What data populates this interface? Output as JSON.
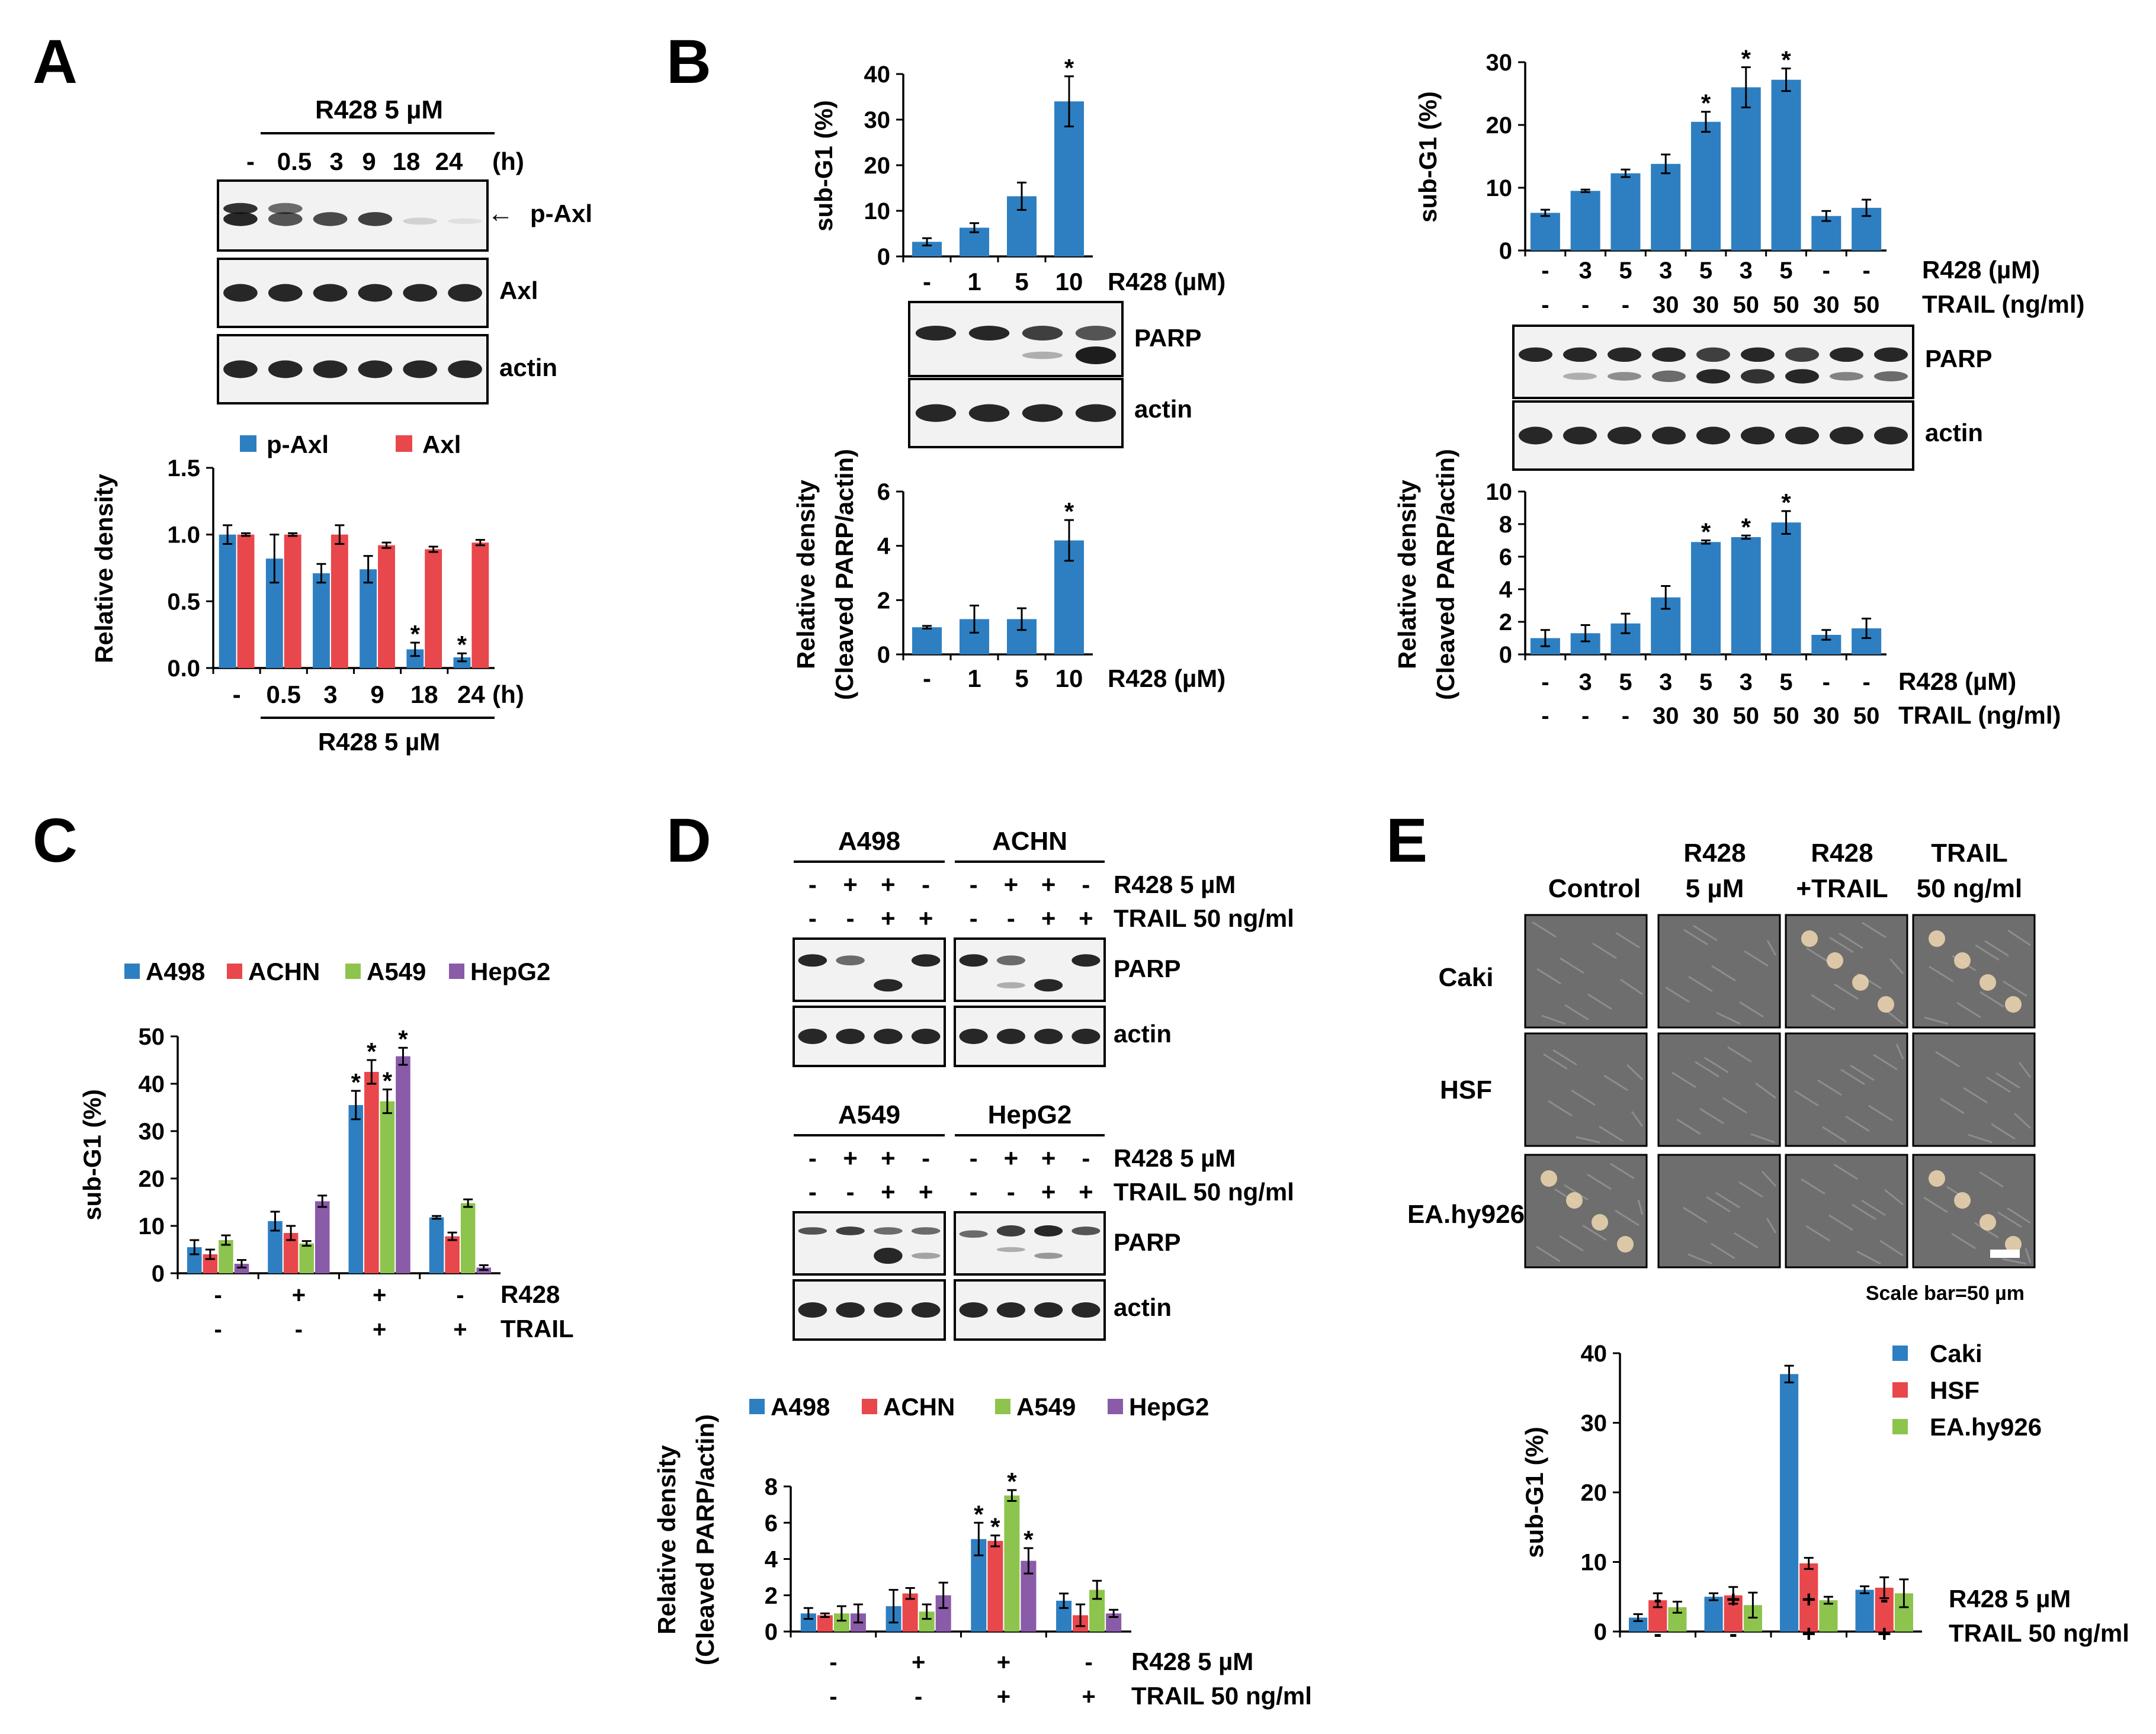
{
  "panels": {
    "A": "A",
    "B": "B",
    "C": "C",
    "D": "D",
    "E": "E"
  },
  "colors": {
    "blue": "#2e7fc1",
    "red": "#e8474b",
    "green": "#8dc44d",
    "purple": "#8a5ba8"
  },
  "panelA": {
    "header": "R428 5 µM",
    "lanes": [
      "-",
      "0.5",
      "3",
      "9",
      "18",
      "24"
    ],
    "unit": "(h)",
    "blots": [
      "p-Axl",
      "Axl",
      "actin"
    ],
    "arrow": "←"
  },
  "panelB": {
    "left_lanes": [
      "-",
      "1",
      "5",
      "10"
    ],
    "left_blots": [
      "PARP",
      "actin"
    ],
    "right_r428": [
      "-",
      "3",
      "5",
      "3",
      "5",
      "3",
      "5",
      "-",
      "-"
    ],
    "right_trail": [
      "-",
      "-",
      "-",
      "30",
      "30",
      "50",
      "50",
      "30",
      "50"
    ],
    "right_blots": [
      "PARP",
      "actin"
    ]
  },
  "panelD": {
    "groups_top": [
      "A498",
      "ACHN"
    ],
    "groups_bottom": [
      "A549",
      "HepG2"
    ],
    "r428_row": [
      "-",
      "+",
      "+",
      "-"
    ],
    "trail_row": [
      "-",
      "-",
      "+",
      "+"
    ],
    "r428_label": "R428 5 µM",
    "trail_label": "TRAIL 50 ng/ml",
    "blots": [
      "PARP",
      "actin"
    ]
  },
  "panelE": {
    "columns": [
      "Control",
      "R428\n5 µM",
      "R428\n+TRAIL",
      "TRAIL\n50 ng/ml"
    ],
    "rows": [
      "Caki",
      "HSF",
      "EA.hy926"
    ],
    "scale_bar": "Scale bar=50 µm"
  },
  "chart_data": [
    {
      "id": "A-bar",
      "type": "bar",
      "ylabel": "Relative density",
      "ylim": [
        0,
        1.5
      ],
      "yticks": [
        "0.0",
        "0.5",
        "1.0",
        "1.5"
      ],
      "categories": [
        "-",
        "0.5",
        "3",
        "9",
        "18",
        "24"
      ],
      "unit": "(h)",
      "under_label": "R428 5 µM",
      "series": [
        {
          "name": "p-Axl",
          "color": "#2e7fc1",
          "values": [
            1.0,
            0.82,
            0.71,
            0.74,
            0.14,
            0.08
          ],
          "err": [
            0.07,
            0.18,
            0.07,
            0.1,
            0.05,
            0.03
          ]
        },
        {
          "name": "Axl",
          "color": "#e8474b",
          "values": [
            1.0,
            1.0,
            1.0,
            0.92,
            0.89,
            0.94
          ],
          "err": [
            0.01,
            0.01,
            0.07,
            0.02,
            0.02,
            0.02
          ]
        }
      ],
      "stars": [
        [
          "p-Axl",
          4
        ],
        [
          "p-Axl",
          5
        ]
      ]
    },
    {
      "id": "B1-subG1",
      "type": "bar",
      "ylabel": "sub-G1 (%)",
      "ylim": [
        0,
        40
      ],
      "yticks": [
        "0",
        "10",
        "20",
        "30",
        "40"
      ],
      "categories": [
        "-",
        "1",
        "5",
        "10"
      ],
      "xlabel": "R428 (µM)",
      "series": [
        {
          "color": "#2e7fc1",
          "values": [
            3.2,
            6.3,
            13.2,
            34.0
          ],
          "err": [
            0.8,
            1.0,
            3.0,
            5.5
          ]
        }
      ],
      "stars": [
        [
          0,
          3
        ]
      ]
    },
    {
      "id": "B1-density",
      "type": "bar",
      "ylabel": [
        "Relative density",
        "(Cleaved  PARP/actin)"
      ],
      "ylim": [
        0,
        6
      ],
      "yticks": [
        "0",
        "2",
        "4",
        "6"
      ],
      "categories": [
        "-",
        "1",
        "5",
        "10"
      ],
      "xlabel": "R428 (µM)",
      "series": [
        {
          "color": "#2e7fc1",
          "values": [
            1.0,
            1.3,
            1.3,
            4.2
          ],
          "err": [
            0.05,
            0.5,
            0.4,
            0.75
          ]
        }
      ],
      "stars": [
        [
          0,
          3
        ]
      ]
    },
    {
      "id": "B2-subG1",
      "type": "bar",
      "ylabel": "sub-G1 (%)",
      "ylim": [
        0,
        30
      ],
      "yticks": [
        "0",
        "10",
        "20",
        "30"
      ],
      "categories": [
        "-",
        "3",
        "5",
        "3",
        "5",
        "3",
        "5",
        "-",
        "-"
      ],
      "rows": [
        {
          "label": "R428 (µM)",
          "values": [
            "-",
            "3",
            "5",
            "3",
            "5",
            "3",
            "5",
            "-",
            "-"
          ]
        },
        {
          "label": "TRAIL (ng/ml)",
          "values": [
            "-",
            "-",
            "-",
            "30",
            "30",
            "50",
            "50",
            "30",
            "50"
          ]
        }
      ],
      "series": [
        {
          "color": "#2e7fc1",
          "values": [
            6.0,
            9.5,
            12.3,
            13.8,
            20.5,
            26.0,
            27.2,
            5.5,
            6.8
          ],
          "err": [
            0.5,
            0.2,
            0.6,
            1.5,
            1.6,
            3.2,
            1.8,
            0.8,
            1.3
          ]
        }
      ],
      "stars": [
        [
          0,
          4
        ],
        [
          0,
          5
        ],
        [
          0,
          6
        ]
      ]
    },
    {
      "id": "B2-density",
      "type": "bar",
      "ylabel": [
        "Relative density",
        "(Cleaved  PARP/actin)"
      ],
      "ylim": [
        0,
        10
      ],
      "yticks": [
        "0",
        "2",
        "4",
        "6",
        "8",
        "10"
      ],
      "categories": [
        "-",
        "3",
        "5",
        "3",
        "5",
        "3",
        "5",
        "-",
        "-"
      ],
      "rows": [
        {
          "label": "R428 (µM)",
          "values": [
            "-",
            "3",
            "5",
            "3",
            "5",
            "3",
            "5",
            "-",
            "-"
          ]
        },
        {
          "label": "TRAIL (ng/ml)",
          "values": [
            "-",
            "-",
            "-",
            "30",
            "30",
            "50",
            "50",
            "30",
            "50"
          ]
        }
      ],
      "series": [
        {
          "color": "#2e7fc1",
          "values": [
            1.0,
            1.3,
            1.9,
            3.5,
            6.9,
            7.2,
            8.1,
            1.2,
            1.6
          ],
          "err": [
            0.5,
            0.5,
            0.6,
            0.7,
            0.1,
            0.1,
            0.7,
            0.3,
            0.6
          ]
        }
      ],
      "stars": [
        [
          0,
          4
        ],
        [
          0,
          5
        ],
        [
          0,
          6
        ]
      ]
    },
    {
      "id": "C",
      "type": "bar",
      "ylabel": "sub-G1 (%)",
      "ylim": [
        0,
        50
      ],
      "yticks": [
        "0",
        "10",
        "20",
        "30",
        "40",
        "50"
      ],
      "categories": [
        "-",
        "+",
        "+",
        "-"
      ],
      "rows": [
        {
          "label": "R428",
          "values": [
            "-",
            "+",
            "+",
            "-"
          ]
        },
        {
          "label": "TRAIL",
          "values": [
            "-",
            "-",
            "+",
            "+"
          ]
        }
      ],
      "series": [
        {
          "name": "A498",
          "color": "#2e7fc1",
          "values": [
            5.5,
            11.0,
            35.5,
            11.8
          ],
          "err": [
            1.5,
            2.0,
            3.0,
            0.3
          ]
        },
        {
          "name": "ACHN",
          "color": "#e8474b",
          "values": [
            4.0,
            8.5,
            42.5,
            7.8
          ],
          "err": [
            1.0,
            1.5,
            2.5,
            0.8
          ]
        },
        {
          "name": "A549",
          "color": "#8dc44d",
          "values": [
            7.0,
            6.3,
            36.3,
            14.8
          ],
          "err": [
            1.0,
            0.5,
            2.5,
            0.8
          ]
        },
        {
          "name": "HepG2",
          "color": "#8a5ba8",
          "values": [
            2.0,
            15.2,
            45.8,
            1.2
          ],
          "err": [
            0.8,
            1.2,
            1.8,
            0.5
          ]
        }
      ],
      "stars": [
        [
          0,
          2
        ],
        [
          1,
          2
        ],
        [
          2,
          2
        ],
        [
          3,
          2
        ]
      ]
    },
    {
      "id": "D-density",
      "type": "bar",
      "ylabel": [
        "Relative density",
        "(Cleaved  PARP/actin)"
      ],
      "ylim": [
        0,
        8
      ],
      "yticks": [
        "0",
        "2",
        "4",
        "6",
        "8"
      ],
      "categories": [
        "-",
        "+",
        "+",
        "-"
      ],
      "rows": [
        {
          "label": "R428 5 µM",
          "values": [
            "-",
            "+",
            "+",
            "-"
          ]
        },
        {
          "label": "TRAIL 50 ng/ml",
          "values": [
            "-",
            "-",
            "+",
            "+"
          ]
        }
      ],
      "series": [
        {
          "name": "A498",
          "color": "#2e7fc1",
          "values": [
            1.0,
            1.4,
            5.1,
            1.7
          ],
          "err": [
            0.3,
            0.9,
            0.9,
            0.4
          ]
        },
        {
          "name": "ACHN",
          "color": "#e8474b",
          "values": [
            0.9,
            2.1,
            5.0,
            0.9
          ],
          "err": [
            0.1,
            0.3,
            0.3,
            0.6
          ]
        },
        {
          "name": "A549",
          "color": "#8dc44d",
          "values": [
            1.0,
            1.1,
            7.5,
            2.3
          ],
          "err": [
            0.4,
            0.4,
            0.3,
            0.5
          ]
        },
        {
          "name": "HepG2",
          "color": "#8a5ba8",
          "values": [
            1.0,
            2.0,
            3.9,
            1.0
          ],
          "err": [
            0.5,
            0.7,
            0.7,
            0.2
          ]
        }
      ],
      "stars": [
        [
          0,
          2
        ],
        [
          1,
          2
        ],
        [
          2,
          2
        ],
        [
          3,
          2
        ]
      ]
    },
    {
      "id": "E-subG1",
      "type": "bar",
      "ylabel": "sub-G1 (%)",
      "ylim": [
        0,
        40
      ],
      "yticks": [
        "0",
        "10",
        "20",
        "30",
        "40"
      ],
      "categories": [
        "-",
        "+",
        "+",
        "-"
      ],
      "rows": [
        {
          "label": "R428 5 µM",
          "values": [
            "-",
            "+",
            "+",
            "-"
          ]
        },
        {
          "label": "TRAIL 50 ng/ml",
          "values": [
            "-",
            "-",
            "+",
            "+"
          ]
        }
      ],
      "series": [
        {
          "name": "Caki",
          "color": "#2e7fc1",
          "values": [
            2.0,
            5.0,
            37.0,
            6.0
          ],
          "err": [
            0.5,
            0.5,
            1.2,
            0.5
          ]
        },
        {
          "name": "HSF",
          "color": "#e8474b",
          "values": [
            4.5,
            5.2,
            9.8,
            6.3
          ],
          "err": [
            1.0,
            1.2,
            0.8,
            1.5
          ]
        },
        {
          "name": "EA.hy926",
          "color": "#8dc44d",
          "values": [
            3.5,
            3.8,
            4.5,
            5.5
          ],
          "err": [
            0.8,
            1.8,
            0.5,
            2.0
          ]
        }
      ],
      "stars": []
    }
  ]
}
